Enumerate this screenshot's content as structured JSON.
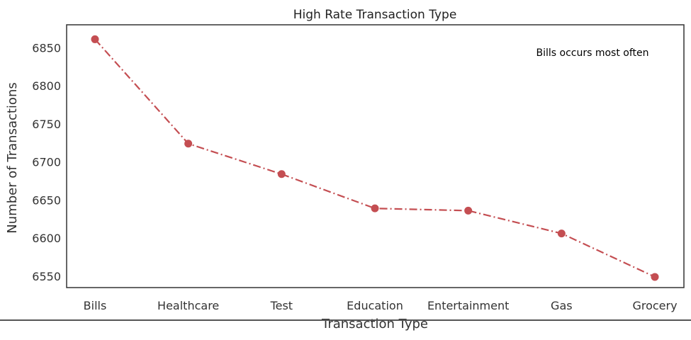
{
  "chart_data": {
    "type": "line",
    "title": "High Rate Transaction Type",
    "xlabel": "Transaction Type",
    "ylabel": "Number of Transactions",
    "categories": [
      "Bills",
      "Healthcare",
      "Test",
      "Education",
      "Entertainment",
      "Gas",
      "Grocery"
    ],
    "series": [
      {
        "values": [
          6861,
          6724,
          6684,
          6639,
          6636,
          6606,
          6549
        ],
        "color": "#c44e52",
        "line_style": "dash-dot",
        "marker": "circle"
      }
    ],
    "ylim": [
      6535,
      6880
    ],
    "yticks": [
      6550,
      6600,
      6650,
      6700,
      6750,
      6800,
      6850
    ],
    "annotation": "Bills occurs most often",
    "grid": false,
    "legend": "none"
  }
}
